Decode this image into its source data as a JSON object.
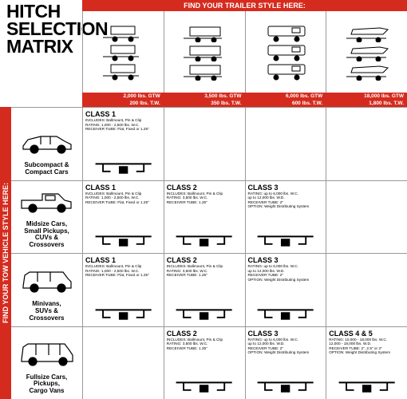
{
  "colors": {
    "red": "#d52b1e",
    "black": "#000000",
    "gray": "#999999"
  },
  "title": [
    "HITCH",
    "SELECTION",
    "MATRIX"
  ],
  "top_banner": "FIND YOUR TRAILER STYLE HERE:",
  "side_banner": "FIND YOUR TOW VEHICLE STYLE HERE:",
  "columns": [
    {
      "gtw": "2,000 lbs. GTW",
      "tw": "200 lbs. T.W.",
      "trailer_style": "small"
    },
    {
      "gtw": "3,500 lbs. GTW",
      "tw": "350 lbs. T.W.",
      "trailer_style": "medium"
    },
    {
      "gtw": "6,000 lbs. GTW",
      "tw": "600 lbs. T.W.",
      "trailer_style": "large"
    },
    {
      "gtw": "18,000 lbs. GTW",
      "tw": "1,800 lbs. T.W.",
      "trailer_style": "boat"
    }
  ],
  "rows": [
    {
      "label": "Subcompact & Compact Cars",
      "vehicle": "sedan"
    },
    {
      "label": "Midsize Cars, Small Pickups, CUVs & Crossovers",
      "vehicle": "pickup"
    },
    {
      "label": "Minivans, SUVs & Crossovers",
      "vehicle": "suv"
    },
    {
      "label": "Fullsize Cars, Pickups, Cargo Vans",
      "vehicle": "fullsize"
    }
  ],
  "cells": [
    [
      {
        "class": "CLASS 1",
        "lines": [
          "INCLUDES: Ballmount, Pin & Clip",
          "RATING: 1,000 - 2,500 lbs. W.C.",
          "RECEIVER TUBE: Flat, Fixed or 1.25\""
        ]
      },
      null,
      null,
      null
    ],
    [
      {
        "class": "CLASS 1",
        "lines": [
          "INCLUDES: Ballmount, Pin & Clip",
          "RATING: 1,000 - 2,500 lbs. W.C.",
          "RECEIVER TUBE: Flat, Fixed or 1.25\""
        ]
      },
      {
        "class": "CLASS 2",
        "lines": [
          "INCLUDES: Ballmount, Pin & Clip",
          "RATING: 3,500 lbs. W.C.",
          "RECEIVER TUBE: 1.25\""
        ]
      },
      {
        "class": "CLASS 3",
        "lines": [
          "RATING: up to  6,000 lbs. W.C.",
          "          up to 12,000 lbs. W.D.",
          "RECEIVER TUBE: 2\"",
          "OPTION: Weight Distributing System"
        ]
      },
      null
    ],
    [
      {
        "class": "CLASS 1",
        "lines": [
          "INCLUDES: Ballmount, Pin & Clip",
          "RATING: 1,000 - 2,500 lbs. W.C.",
          "RECEIVER TUBE: Flat, Fixed or 1.25\""
        ]
      },
      {
        "class": "CLASS 2",
        "lines": [
          "INCLUDES: Ballmount, Pin & Clip",
          "RATING: 3,500 lbs. W.C.",
          "RECEIVER TUBE: 1.25\""
        ]
      },
      {
        "class": "CLASS 3",
        "lines": [
          "RATING: up to  6,000 lbs. W.C.",
          "          up to 12,000 lbs. W.D.",
          "RECEIVER TUBE: 2\"",
          "OPTION: Weight Distributing System"
        ]
      },
      null
    ],
    [
      null,
      {
        "class": "CLASS 2",
        "lines": [
          "INCLUDES: Ballmount, Pin & Clip",
          "RATING: 3,500 lbs. W.C.",
          "RECEIVER TUBE: 1.25\""
        ]
      },
      {
        "class": "CLASS 3",
        "lines": [
          "RATING: up to  6,000 lbs. W.C.",
          "          up to 12,000 lbs. W.D.",
          "RECEIVER TUBE: 2\"",
          "OPTION: Weight Distributing System"
        ]
      },
      {
        "class": "CLASS 4 & 5",
        "lines": [
          "RATING: 10,000 - 18,000 lbs. W.C.",
          "         12,000 - 18,000 lbs. W.D.",
          "RECEIVER TUBE: 2\", 2.5\" or 3\"",
          "OPTION: Weight Distributing System"
        ]
      }
    ]
  ]
}
